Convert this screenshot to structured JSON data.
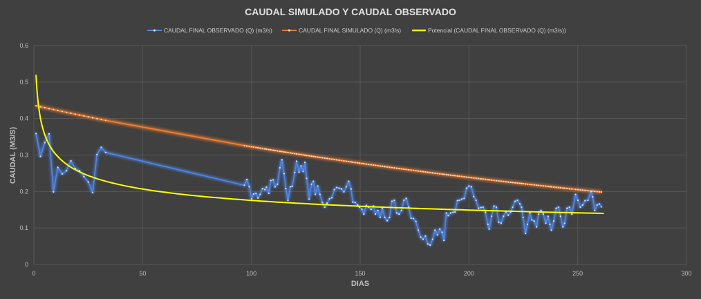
{
  "chart_data": {
    "type": "line",
    "title": "CAUDAL SIMULADO Y CAUDAL OBSERVADO",
    "xlabel": "DIAS",
    "ylabel": "CAUDAL (M3/S)",
    "xlim": [
      0,
      300
    ],
    "ylim": [
      0,
      0.6
    ],
    "xticks": [
      "0",
      "50",
      "100",
      "150",
      "200",
      "250",
      "300"
    ],
    "yticks": [
      "0",
      "0.1",
      "0.2",
      "0.3",
      "0.4",
      "0.5",
      "0.6"
    ],
    "grid": true,
    "legend_position": "top",
    "colors": {
      "observed": "#4f86e6",
      "simulated": "#ed7d31",
      "trend": "#ffff00",
      "background": "#404040",
      "grid": "#575757"
    },
    "series": [
      {
        "name": "CAUDAL FINAL OBSERVADO (Q) (m3/s)",
        "x": [
          1,
          3,
          5,
          7,
          9,
          11,
          13,
          15,
          17,
          19,
          21,
          23,
          25,
          27,
          29,
          31,
          33,
          96.8,
          97.9,
          99.0,
          100.1,
          101.0,
          102.1,
          103.0,
          104.0,
          105.1,
          106.2,
          106.9,
          108.0,
          108.9,
          110.0,
          110.9,
          112.0,
          113.1,
          114.0,
          115.0,
          115.8,
          116.8,
          117.9,
          118.8,
          119.9,
          120.8,
          121.9,
          122.8,
          123.8,
          124.6,
          125.4,
          126.5,
          127.6,
          128.5,
          129.4,
          130.5,
          131.5,
          132.6,
          133.7,
          134.8,
          135.9,
          137.0,
          138.1,
          139.2,
          140.3,
          141.4,
          142.5,
          143.6,
          144.7,
          145.8,
          146.6,
          147.7,
          148.8,
          149.7,
          150.8,
          151.7,
          152.8,
          153.9,
          155.0,
          156.1,
          157.0,
          158.1,
          159.2,
          160.2,
          161.3,
          162.4,
          163.5,
          164.6,
          165.7,
          166.8,
          167.9,
          169.0,
          170.1,
          171.2,
          172.3,
          173.4,
          174.5,
          175.6,
          176.7,
          177.8,
          178.9,
          180.0,
          181.1,
          182.2,
          183.3,
          184.4,
          185.5,
          186.6,
          187.7,
          188.5,
          189.6,
          190.5,
          191.6,
          192.7,
          193.6,
          194.7,
          195.6,
          196.7,
          197.8,
          198.9,
          200.0,
          201.1,
          202.2,
          203.3,
          204.4,
          205.5,
          206.5,
          207.6,
          208.7,
          209.3,
          210.4,
          211.5,
          212.6,
          213.7,
          214.8,
          215.9,
          217.0,
          218.1,
          219.2,
          220.1,
          221.2,
          222.3,
          223.4,
          224.2,
          224.9,
          226.0,
          226.9,
          228.0,
          228.9,
          230.0,
          231.1,
          232.0,
          233.1,
          234.2,
          235.3,
          236.4,
          237.2,
          237.9,
          239.0,
          240.1,
          241.2,
          242.1,
          243.2,
          244.0,
          245.1,
          246.2,
          247.3,
          249.0,
          250.1,
          251.2,
          252.3,
          253.4,
          254.7,
          256.1,
          256.9,
          257.8,
          258.9,
          260.0,
          260.9
        ],
        "y": [
          0.359,
          0.296,
          0.334,
          0.358,
          0.199,
          0.266,
          0.248,
          0.257,
          0.284,
          0.263,
          0.257,
          0.241,
          0.226,
          0.197,
          0.301,
          0.321,
          0.307,
          0.217,
          0.233,
          0.213,
          0.18,
          0.193,
          0.195,
          0.182,
          0.192,
          0.208,
          0.205,
          0.212,
          0.195,
          0.23,
          0.232,
          0.213,
          0.22,
          0.265,
          0.287,
          0.249,
          0.208,
          0.176,
          0.213,
          0.214,
          0.252,
          0.283,
          0.253,
          0.27,
          0.255,
          0.28,
          0.236,
          0.179,
          0.22,
          0.228,
          0.192,
          0.215,
          0.192,
          0.17,
          0.157,
          0.168,
          0.18,
          0.183,
          0.205,
          0.211,
          0.209,
          0.207,
          0.199,
          0.213,
          0.228,
          0.207,
          0.171,
          0.17,
          0.163,
          0.157,
          0.151,
          0.138,
          0.162,
          0.157,
          0.151,
          0.16,
          0.138,
          0.148,
          0.129,
          0.154,
          0.129,
          0.12,
          0.129,
          0.173,
          0.176,
          0.141,
          0.138,
          0.148,
          0.176,
          0.181,
          0.157,
          0.127,
          0.126,
          0.118,
          0.094,
          0.075,
          0.069,
          0.078,
          0.056,
          0.053,
          0.069,
          0.094,
          0.081,
          0.097,
          0.088,
          0.066,
          0.141,
          0.134,
          0.141,
          0.143,
          0.144,
          0.175,
          0.176,
          0.179,
          0.181,
          0.209,
          0.215,
          0.213,
          0.186,
          0.176,
          0.154,
          0.156,
          0.157,
          0.143,
          0.11,
          0.097,
          0.132,
          0.16,
          0.157,
          0.116,
          0.113,
          0.132,
          0.144,
          0.135,
          0.144,
          0.157,
          0.173,
          0.176,
          0.166,
          0.157,
          0.129,
          0.085,
          0.11,
          0.141,
          0.122,
          0.119,
          0.103,
          0.138,
          0.148,
          0.138,
          0.113,
          0.132,
          0.11,
          0.094,
          0.119,
          0.154,
          0.157,
          0.132,
          0.103,
          0.113,
          0.154,
          0.157,
          0.138,
          0.192,
          0.176,
          0.157,
          0.163,
          0.175,
          0.176,
          0.2,
          0.185,
          0.148,
          0.163,
          0.166,
          0.158
        ]
      },
      {
        "name": "CAUDAL FINAL SIMULADO (Q) (m3/s)",
        "model": "exponential",
        "q0": 0.435,
        "k": 0.003016,
        "x_from": "observed"
      },
      {
        "name": "Potencial (CAUDAL FINAL OBSERVADO (Q) (m3/s))",
        "model": "power",
        "a": 0.52,
        "b": -0.2357,
        "x_range": [
          1,
          262
        ]
      }
    ]
  }
}
